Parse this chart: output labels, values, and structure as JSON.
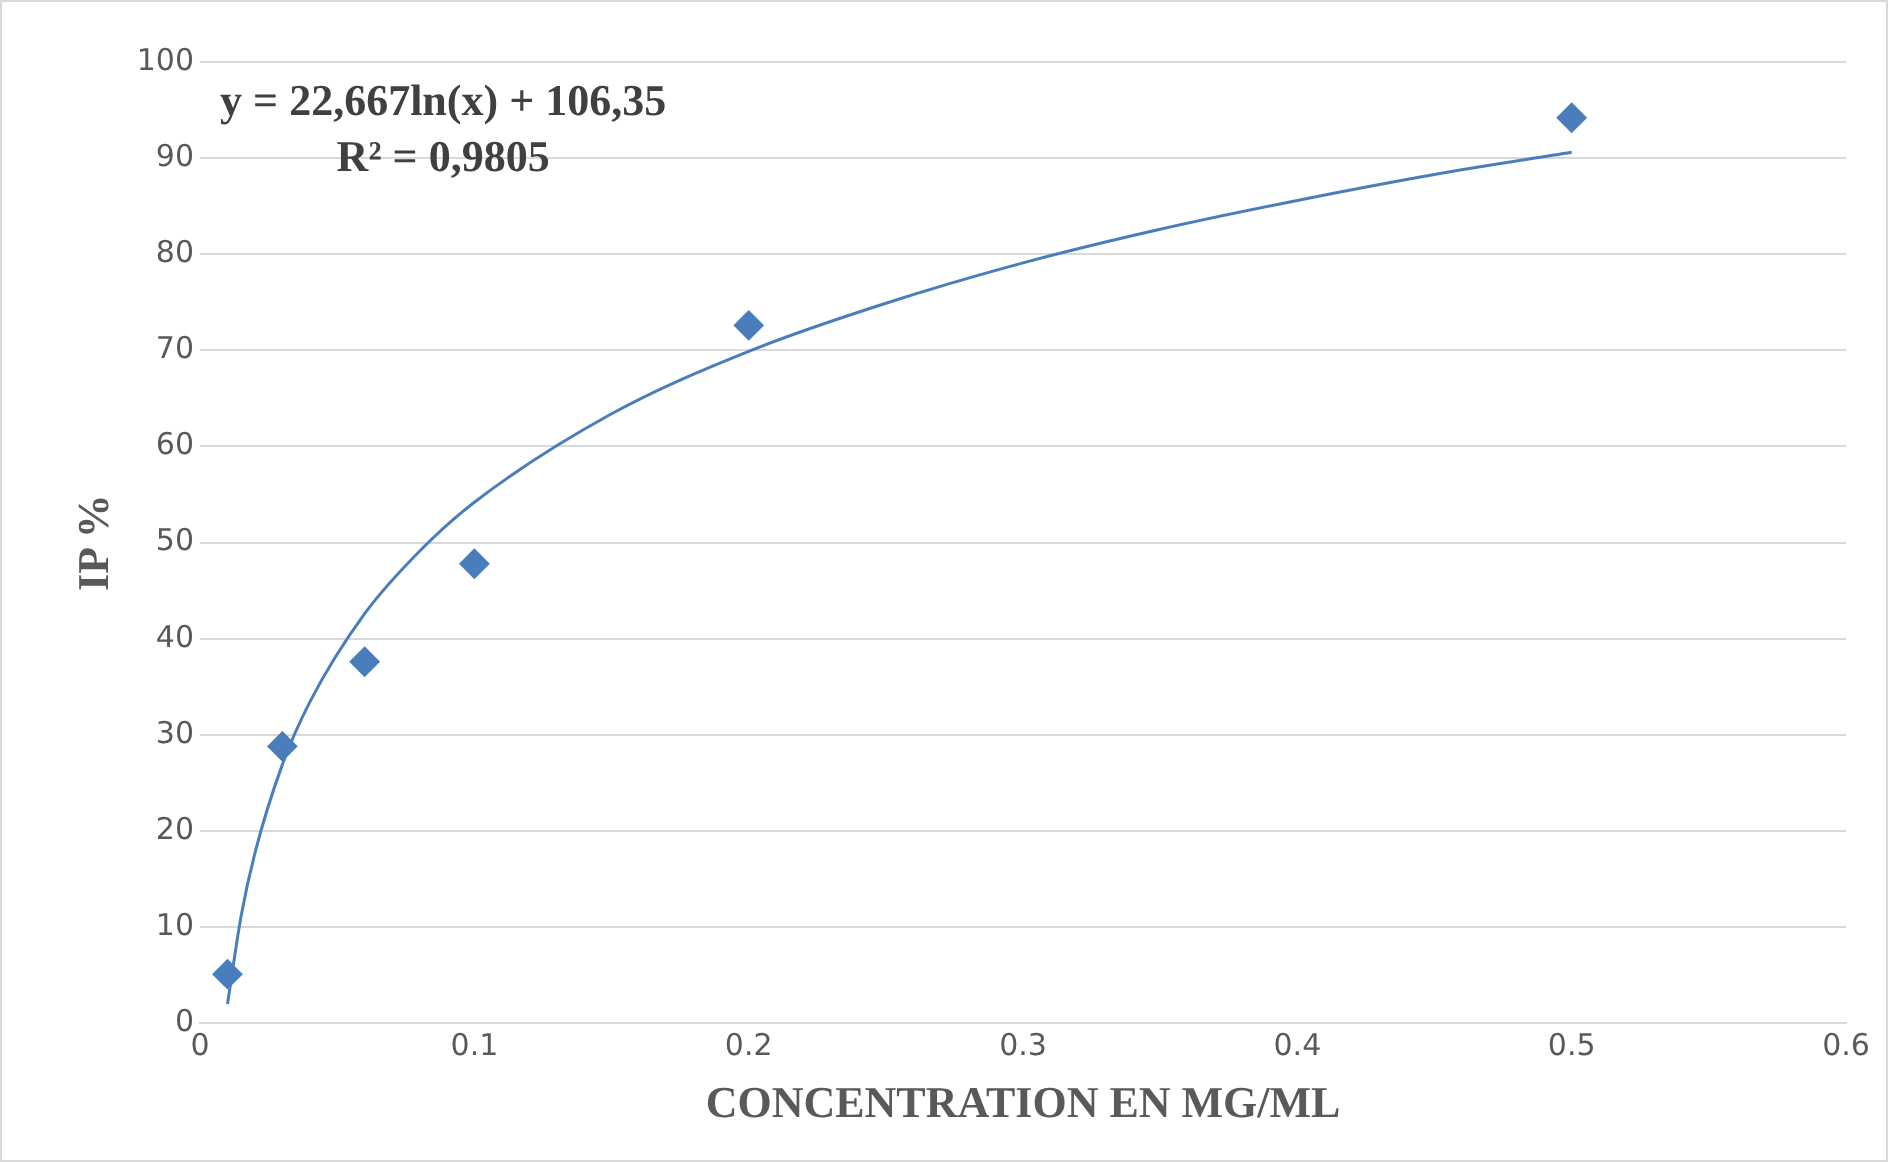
{
  "chart_data": {
    "type": "scatter",
    "xlabel": "CONCENTRATION EN MG/ML",
    "ylabel": "IP %",
    "xlim": [
      0,
      0.6
    ],
    "xticks": [
      0,
      0.1,
      0.2,
      0.3,
      0.4,
      0.5,
      0.6
    ],
    "ylim": [
      0,
      100
    ],
    "yticks": [
      0,
      10,
      20,
      30,
      40,
      50,
      60,
      70,
      80,
      90,
      100
    ],
    "grid": "y",
    "legend": false,
    "marker": "diamond",
    "annotations": [
      "y = 22,667ln(x) + 106,35",
      "R² = 0,9805"
    ],
    "series": [
      {
        "type": "scatter",
        "color": "#4a7ebb",
        "x": [
          0.01,
          0.03,
          0.06,
          0.1,
          0.2,
          0.5
        ],
        "values": [
          5.1,
          28.8,
          37.6,
          47.8,
          72.6,
          94.2
        ]
      },
      {
        "type": "line",
        "color": "#4a7ebb",
        "marker": "none",
        "x": [
          0.01,
          0.015,
          0.02,
          0.03,
          0.04,
          0.06,
          0.08,
          0.1,
          0.15,
          0.2,
          0.25,
          0.3,
          0.35,
          0.4,
          0.45,
          0.5
        ],
        "values": [
          2,
          11.2,
          17.7,
          26.9,
          33.4,
          42.6,
          49.1,
          54.2,
          63.4,
          69.9,
          74.9,
          79.1,
          82.6,
          85.6,
          88.3,
          90.6
        ]
      }
    ]
  }
}
